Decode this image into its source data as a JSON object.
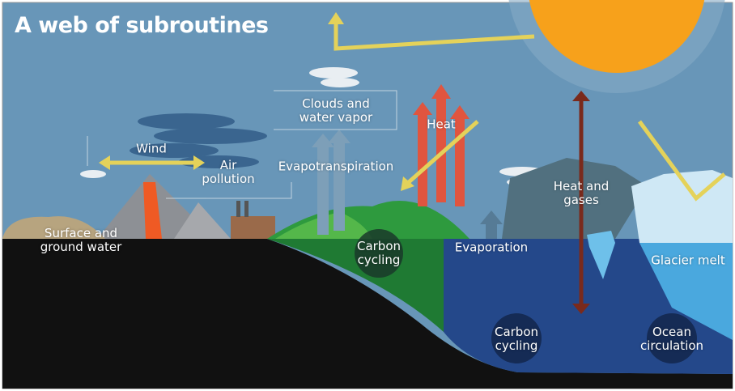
{
  "header": {
    "title": "A web of subroutines"
  },
  "labels": [
    {
      "lines": [
        "Wind"
      ]
    },
    {
      "lines": [
        "Air",
        "pollution"
      ]
    },
    {
      "lines": [
        "Surface and",
        "ground water"
      ]
    },
    {
      "lines": [
        "Clouds and",
        "water vapor"
      ]
    },
    {
      "lines": [
        "Evapotranspiration"
      ]
    },
    {
      "lines": [
        "Heat"
      ]
    },
    {
      "lines": [
        "Heat and",
        "gases"
      ]
    },
    {
      "lines": [
        "Carbon",
        "cycling"
      ]
    },
    {
      "lines": [
        "Evaporation"
      ]
    },
    {
      "lines": [
        "Glacier melt"
      ]
    },
    {
      "lines": [
        "Carbon",
        "cycling"
      ]
    },
    {
      "lines": [
        "Ocean",
        "circulation"
      ]
    }
  ]
}
